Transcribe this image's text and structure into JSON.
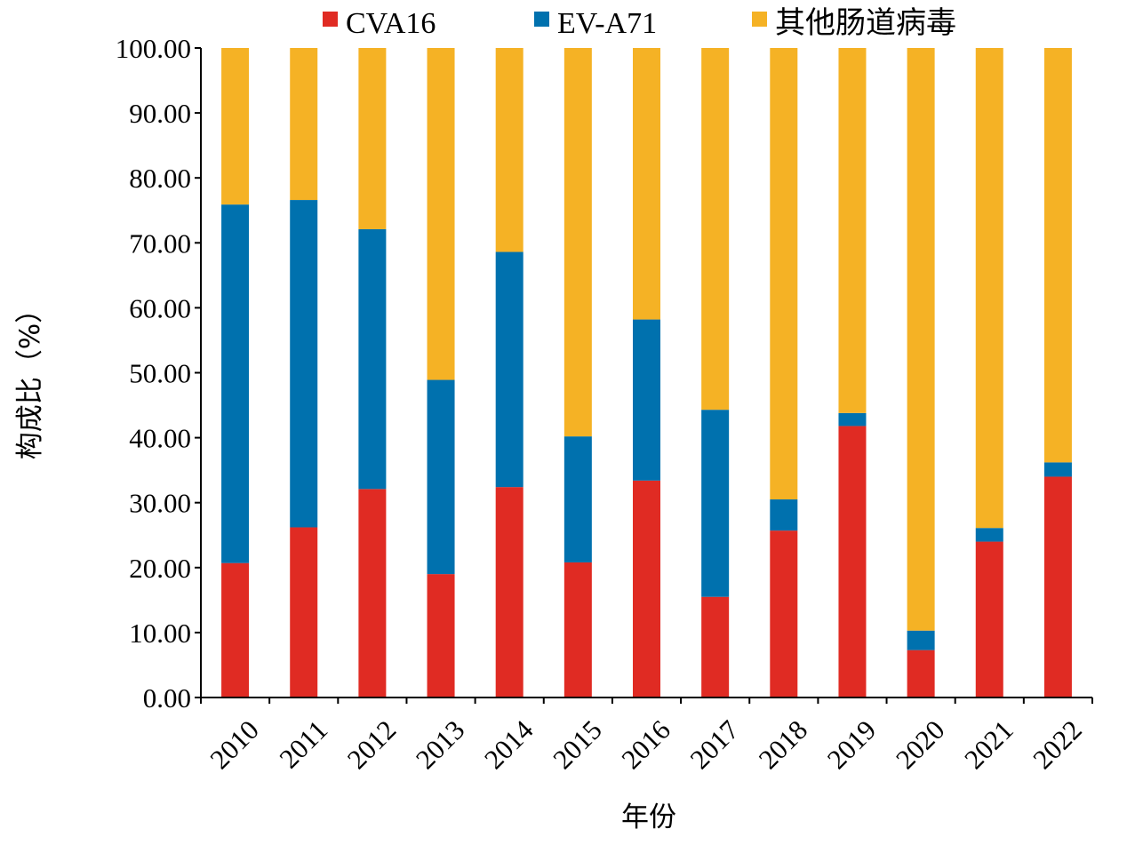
{
  "chart_data": {
    "type": "bar",
    "stacked": true,
    "title": "",
    "xlabel": "年份",
    "ylabel": "构成比（%）",
    "ylim": [
      0,
      100
    ],
    "yticks": [
      "0.00",
      "10.00",
      "20.00",
      "30.00",
      "40.00",
      "50.00",
      "60.00",
      "70.00",
      "80.00",
      "90.00",
      "100.00"
    ],
    "categories": [
      "2010",
      "2011",
      "2012",
      "2013",
      "2014",
      "2015",
      "2016",
      "2017",
      "2018",
      "2019",
      "2020",
      "2021",
      "2022"
    ],
    "legend_position": "top",
    "grid": false,
    "series": [
      {
        "name": "CVA16",
        "color": "#e02b23",
        "values": [
          20.7,
          26.2,
          32.1,
          19.0,
          32.4,
          20.8,
          33.4,
          15.5,
          25.7,
          41.8,
          7.3,
          24.0,
          34.0
        ]
      },
      {
        "name": "EV-A71",
        "color": "#0071ae",
        "values": [
          55.2,
          50.4,
          40.0,
          29.9,
          36.2,
          19.4,
          24.8,
          28.8,
          4.8,
          2.0,
          3.0,
          2.1,
          2.2
        ]
      },
      {
        "name": "其他肠道病毒",
        "color": "#f5b225",
        "values": [
          24.1,
          23.4,
          27.9,
          51.1,
          31.4,
          59.8,
          41.8,
          55.7,
          69.5,
          56.2,
          89.7,
          73.9,
          63.8
        ]
      }
    ]
  }
}
